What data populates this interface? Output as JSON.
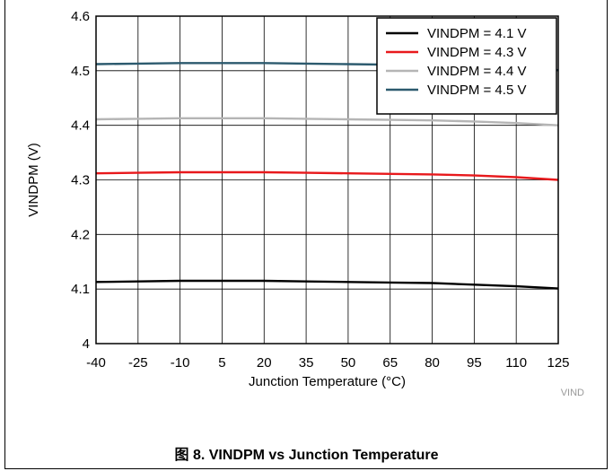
{
  "chart_data": {
    "type": "line",
    "xlabel": "Junction Temperature (°C)",
    "ylabel": "VINDPM (V)",
    "xlim": [
      -40,
      125
    ],
    "ylim": [
      4.0,
      4.6
    ],
    "x_ticks": [
      -40,
      -25,
      -10,
      5,
      20,
      35,
      50,
      65,
      80,
      95,
      110,
      125
    ],
    "y_ticks": [
      "4",
      "4.1",
      "4.2",
      "4.3",
      "4.4",
      "4.5",
      "4.6"
    ],
    "grid": true,
    "legend_position": "top-right",
    "x": [
      -40,
      -25,
      -10,
      5,
      20,
      35,
      50,
      65,
      80,
      95,
      110,
      125
    ],
    "series": [
      {
        "name": "VINDPM = 4.1 V",
        "color": "#000000",
        "values": [
          4.113,
          4.114,
          4.115,
          4.115,
          4.115,
          4.114,
          4.113,
          4.112,
          4.111,
          4.108,
          4.105,
          4.101
        ]
      },
      {
        "name": "VINDPM = 4.3 V",
        "color": "#e8191c",
        "values": [
          4.312,
          4.313,
          4.314,
          4.314,
          4.314,
          4.313,
          4.312,
          4.311,
          4.31,
          4.308,
          4.305,
          4.3
        ]
      },
      {
        "name": "VINDPM = 4.4 V",
        "color": "#b5b5b5",
        "values": [
          4.411,
          4.412,
          4.413,
          4.413,
          4.413,
          4.412,
          4.411,
          4.41,
          4.409,
          4.407,
          4.404,
          4.4
        ]
      },
      {
        "name": "VINDPM = 4.5 V",
        "color": "#2c5a6e",
        "values": [
          4.512,
          4.513,
          4.514,
          4.514,
          4.514,
          4.513,
          4.512,
          4.511,
          4.51,
          4.508,
          4.505,
          4.501
        ]
      }
    ],
    "watermark": "VIND",
    "caption": "图 8. VINDPM vs Junction Temperature"
  }
}
